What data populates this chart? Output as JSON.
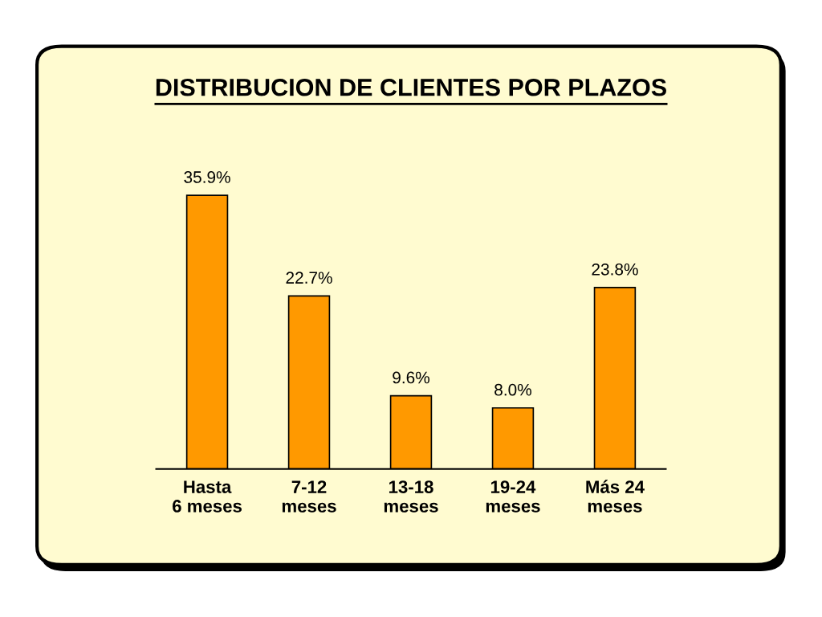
{
  "chart_data": {
    "type": "bar",
    "title": "DISTRIBUCION DE CLIENTES POR PLAZOS",
    "categories": [
      "Hasta\n6 meses",
      "7-12\nmeses",
      "13-18\nmeses",
      "19-24\nmeses",
      "Más 24\nmeses"
    ],
    "values": [
      35.9,
      22.7,
      9.6,
      8.0,
      23.8
    ],
    "value_labels": [
      "35.9%",
      "22.7%",
      "9.6%",
      "8.0%",
      "23.8%"
    ],
    "color": "#ff9900",
    "grid": false,
    "legend": false
  }
}
